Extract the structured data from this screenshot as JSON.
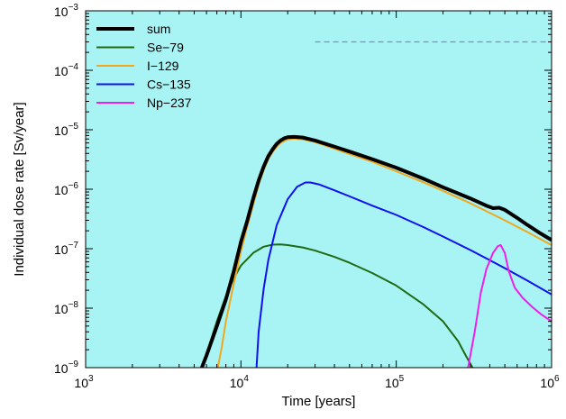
{
  "chart_data": {
    "type": "line",
    "title": "",
    "xlabel": "Time [years]",
    "ylabel": "Individual dose rate [Sv/year]",
    "x_scale": "log",
    "y_scale": "log",
    "xlim": [
      1000,
      1000000
    ],
    "ylim": [
      1e-09,
      0.001
    ],
    "grid": false,
    "legend_position": "top-left",
    "background_color": "#a8f4f4",
    "x_ticks": [
      {
        "value": 1000,
        "base": "10",
        "exp": "3"
      },
      {
        "value": 10000,
        "base": "10",
        "exp": "4"
      },
      {
        "value": 100000,
        "base": "10",
        "exp": "5"
      },
      {
        "value": 1000000,
        "base": "10",
        "exp": "6"
      }
    ],
    "y_ticks": [
      {
        "value": 1e-09,
        "base": "10",
        "exp": "−9"
      },
      {
        "value": 1e-08,
        "base": "10",
        "exp": "−8"
      },
      {
        "value": 1e-07,
        "base": "10",
        "exp": "−7"
      },
      {
        "value": 1e-06,
        "base": "10",
        "exp": "−6"
      },
      {
        "value": 1e-05,
        "base": "10",
        "exp": "−5"
      },
      {
        "value": 0.0001,
        "base": "10",
        "exp": "−4"
      },
      {
        "value": 0.001,
        "base": "10",
        "exp": "−3"
      }
    ],
    "reference_line": {
      "y": 0.0003,
      "x_start": 30000,
      "x_end": 1000000,
      "color": "#6b9aaa",
      "style": "dashed"
    },
    "series": [
      {
        "name": "sum",
        "color": "#000000",
        "width": 4,
        "points": [
          [
            5600,
            1e-09
          ],
          [
            6000,
            1.6e-09
          ],
          [
            7000,
            5e-09
          ],
          [
            8000,
            1.4e-08
          ],
          [
            9000,
            4.2e-08
          ],
          [
            10000,
            1.3e-07
          ],
          [
            11000,
            3e-07
          ],
          [
            12000,
            7e-07
          ],
          [
            13000,
            1.4e-06
          ],
          [
            14000,
            2.4e-06
          ],
          [
            15000,
            3.6e-06
          ],
          [
            16000,
            4.7e-06
          ],
          [
            17000,
            5.8e-06
          ],
          [
            18000,
            6.6e-06
          ],
          [
            19000,
            7.2e-06
          ],
          [
            20000,
            7.5e-06
          ],
          [
            22000,
            7.6e-06
          ],
          [
            25000,
            7.4e-06
          ],
          [
            30000,
            6.6e-06
          ],
          [
            40000,
            5.2e-06
          ],
          [
            50000,
            4.3e-06
          ],
          [
            70000,
            3.2e-06
          ],
          [
            100000,
            2.3e-06
          ],
          [
            150000,
            1.5e-06
          ],
          [
            200000,
            1.08e-06
          ],
          [
            300000,
            7e-07
          ],
          [
            380000,
            5.3e-07
          ],
          [
            420000,
            4.8e-07
          ],
          [
            460000,
            4.9e-07
          ],
          [
            500000,
            4.5e-07
          ],
          [
            600000,
            3.3e-07
          ],
          [
            700000,
            2.5e-07
          ],
          [
            850000,
            1.8e-07
          ],
          [
            1000000,
            1.4e-07
          ]
        ]
      },
      {
        "name": "Se−79",
        "color": "#1e6b14",
        "width": 2,
        "points": [
          [
            5600,
            1e-09
          ],
          [
            6000,
            1.7e-09
          ],
          [
            7000,
            6e-09
          ],
          [
            8000,
            1.6e-08
          ],
          [
            9000,
            3.2e-08
          ],
          [
            10000,
            5.2e-08
          ],
          [
            12000,
            8.5e-08
          ],
          [
            14000,
            1.08e-07
          ],
          [
            16000,
            1.17e-07
          ],
          [
            18000,
            1.18e-07
          ],
          [
            20000,
            1.15e-07
          ],
          [
            25000,
            1.05e-07
          ],
          [
            30000,
            9.3e-08
          ],
          [
            40000,
            7.3e-08
          ],
          [
            50000,
            5.8e-08
          ],
          [
            70000,
            3.9e-08
          ],
          [
            100000,
            2.4e-08
          ],
          [
            150000,
            1.15e-08
          ],
          [
            200000,
            6e-09
          ],
          [
            250000,
            2.8e-09
          ],
          [
            280000,
            1.6e-09
          ],
          [
            310000,
            1e-09
          ]
        ]
      },
      {
        "name": "I−129",
        "color": "#f0a820",
        "width": 2,
        "points": [
          [
            7100,
            1e-09
          ],
          [
            7500,
            2.1e-09
          ],
          [
            8000,
            6e-09
          ],
          [
            9000,
            2.6e-08
          ],
          [
            10000,
            9e-08
          ],
          [
            11000,
            2.4e-07
          ],
          [
            12000,
            5.5e-07
          ],
          [
            13000,
            1.2e-06
          ],
          [
            14000,
            2.1e-06
          ],
          [
            15000,
            3.2e-06
          ],
          [
            16000,
            4.2e-06
          ],
          [
            17000,
            5.2e-06
          ],
          [
            18000,
            6e-06
          ],
          [
            20000,
            6.9e-06
          ],
          [
            22000,
            7.1e-06
          ],
          [
            25000,
            6.9e-06
          ],
          [
            30000,
            6.2e-06
          ],
          [
            40000,
            4.8e-06
          ],
          [
            50000,
            3.9e-06
          ],
          [
            70000,
            2.9e-06
          ],
          [
            100000,
            2e-06
          ],
          [
            150000,
            1.3e-06
          ],
          [
            200000,
            9.4e-07
          ],
          [
            300000,
            5.8e-07
          ],
          [
            400000,
            4e-07
          ],
          [
            500000,
            3e-07
          ],
          [
            700000,
            1.9e-07
          ],
          [
            1000000,
            1.15e-07
          ]
        ]
      },
      {
        "name": "Cs−135",
        "color": "#1010f0",
        "width": 2,
        "points": [
          [
            12600,
            1e-09
          ],
          [
            13000,
            4e-09
          ],
          [
            14000,
            2.1e-08
          ],
          [
            15000,
            6.4e-08
          ],
          [
            17000,
            2.5e-07
          ],
          [
            20000,
            6.8e-07
          ],
          [
            23000,
            1.1e-06
          ],
          [
            26000,
            1.3e-06
          ],
          [
            28000,
            1.3e-06
          ],
          [
            32000,
            1.2e-06
          ],
          [
            40000,
            9.6e-07
          ],
          [
            50000,
            7.6e-07
          ],
          [
            70000,
            5.3e-07
          ],
          [
            100000,
            3.7e-07
          ],
          [
            150000,
            2.3e-07
          ],
          [
            200000,
            1.6e-07
          ],
          [
            300000,
            9.5e-08
          ],
          [
            400000,
            6.4e-08
          ],
          [
            500000,
            4.7e-08
          ],
          [
            700000,
            2.9e-08
          ],
          [
            1000000,
            1.7e-08
          ]
        ]
      },
      {
        "name": "Np−237",
        "color": "#ee1eee",
        "width": 2,
        "points": [
          [
            290000,
            1e-09
          ],
          [
            320000,
            4e-09
          ],
          [
            350000,
            1.8e-08
          ],
          [
            380000,
            4.5e-08
          ],
          [
            420000,
            8.5e-08
          ],
          [
            450000,
            1.1e-07
          ],
          [
            470000,
            1.15e-07
          ],
          [
            500000,
            8.5e-08
          ],
          [
            530000,
            4.2e-08
          ],
          [
            580000,
            2.2e-08
          ],
          [
            650000,
            1.5e-08
          ],
          [
            750000,
            1.05e-08
          ],
          [
            850000,
            8e-09
          ],
          [
            1000000,
            6e-09
          ]
        ]
      }
    ]
  }
}
